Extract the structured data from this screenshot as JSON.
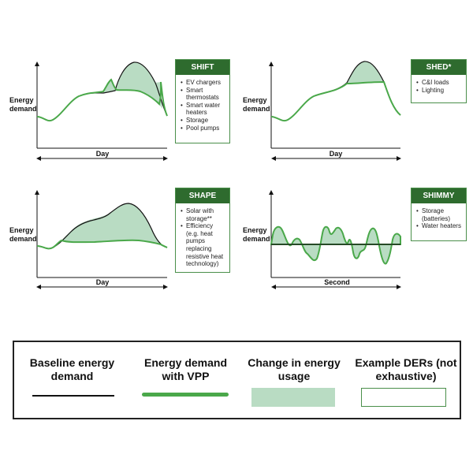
{
  "panels": [
    {
      "id": "shift",
      "ylabel": "Energy\ndemand",
      "xlabel": "Day",
      "der_title": "SHIFT",
      "der_items": [
        "EV chargers",
        "Smart thermostats",
        "Smart water heaters",
        "Storage",
        "Pool pumps"
      ]
    },
    {
      "id": "shed",
      "ylabel": "Energy\ndemand",
      "xlabel": "Day",
      "der_title": "SHED*",
      "der_items": [
        "C&I loads",
        "Lighting"
      ]
    },
    {
      "id": "shape",
      "ylabel": "Energy\ndemand",
      "xlabel": "Day",
      "der_title": "SHAPE",
      "der_items": [
        "Solar with storage**",
        "Efficiency (e.g. heat pumps replacing resistive heat technology)"
      ]
    },
    {
      "id": "shimmy",
      "ylabel": "Energy\ndemand",
      "xlabel": "Second",
      "der_title": "SHIMMY",
      "der_items": [
        "Storage (batteries)",
        "Water heaters"
      ]
    }
  ],
  "legend": {
    "baseline": "Baseline energy demand",
    "vpp": "Energy demand with VPP",
    "change": "Change in energy usage",
    "ders": "Example DERs (not exhaustive)"
  },
  "colors": {
    "baseline": "#111111",
    "vpp": "#4aa84a",
    "fill": "#b9dcc3",
    "der_header": "#2e6b2e",
    "der_border": "#4a8f4a"
  }
}
